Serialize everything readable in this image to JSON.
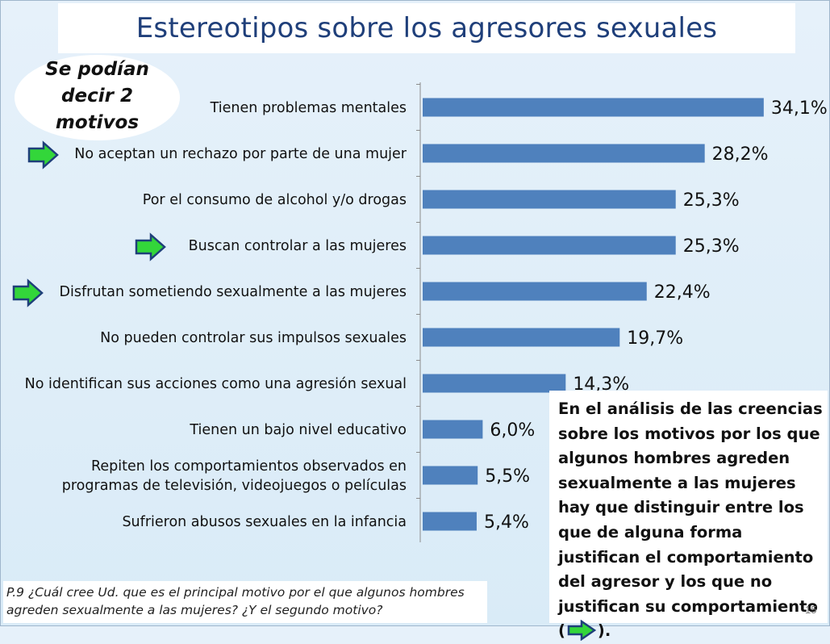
{
  "title": "Estereotipos sobre los agresores sexuales",
  "note": {
    "lines": [
      "Se podían",
      "decir 2",
      "motivos"
    ]
  },
  "chart_data": {
    "type": "bar",
    "orientation": "horizontal",
    "categories": [
      [
        "Tienen problemas mentales"
      ],
      [
        "No aceptan un rechazo por parte de una mujer"
      ],
      [
        "Por el consumo de alcohol y/o drogas"
      ],
      [
        "Buscan controlar a las mujeres"
      ],
      [
        "Disfrutan sometiendo sexualmente a las mujeres"
      ],
      [
        "No pueden controlar sus impulsos sexuales"
      ],
      [
        "No identifican sus acciones como una agresión sexual"
      ],
      [
        "Tienen un bajo nivel educativo"
      ],
      [
        "Repiten los comportamientos observados en",
        "programas de televisión, videojuegos o películas"
      ],
      [
        "Sufrieron abusos sexuales en la infancia"
      ]
    ],
    "values": [
      34.1,
      28.2,
      25.3,
      25.3,
      22.4,
      19.7,
      14.3,
      6.0,
      5.5,
      5.4
    ],
    "value_labels": [
      "34,1%",
      "28,2%",
      "25,3%",
      "25,3%",
      "22,4%",
      "19,7%",
      "14,3%",
      "6,0%",
      "5,5%",
      "5,4%"
    ],
    "highlighted": [
      false,
      true,
      false,
      true,
      true,
      false,
      false,
      false,
      false,
      false
    ],
    "xlim": [
      0,
      40
    ],
    "bar_color": "#4f81bd",
    "grid": false
  },
  "arrow_colors": {
    "fill": "#33d63a",
    "outline": "#1f3f7a"
  },
  "analysis": {
    "text_before": "En el análisis de las creencias sobre los motivos por los que algunos hombres agreden sexualmente a las mujeres hay que distinguir entre los que de alguna forma justifican el comportamiento del agresor y los que no justifican su comportamiento (",
    "text_after": ")."
  },
  "question": {
    "line1": "P.9  ¿Cuál cree Ud. que es el principal motivo por el que algunos hombres",
    "line2": "agreden sexualmente a las mujeres? ¿Y el segundo motivo?"
  },
  "page_number": "15"
}
